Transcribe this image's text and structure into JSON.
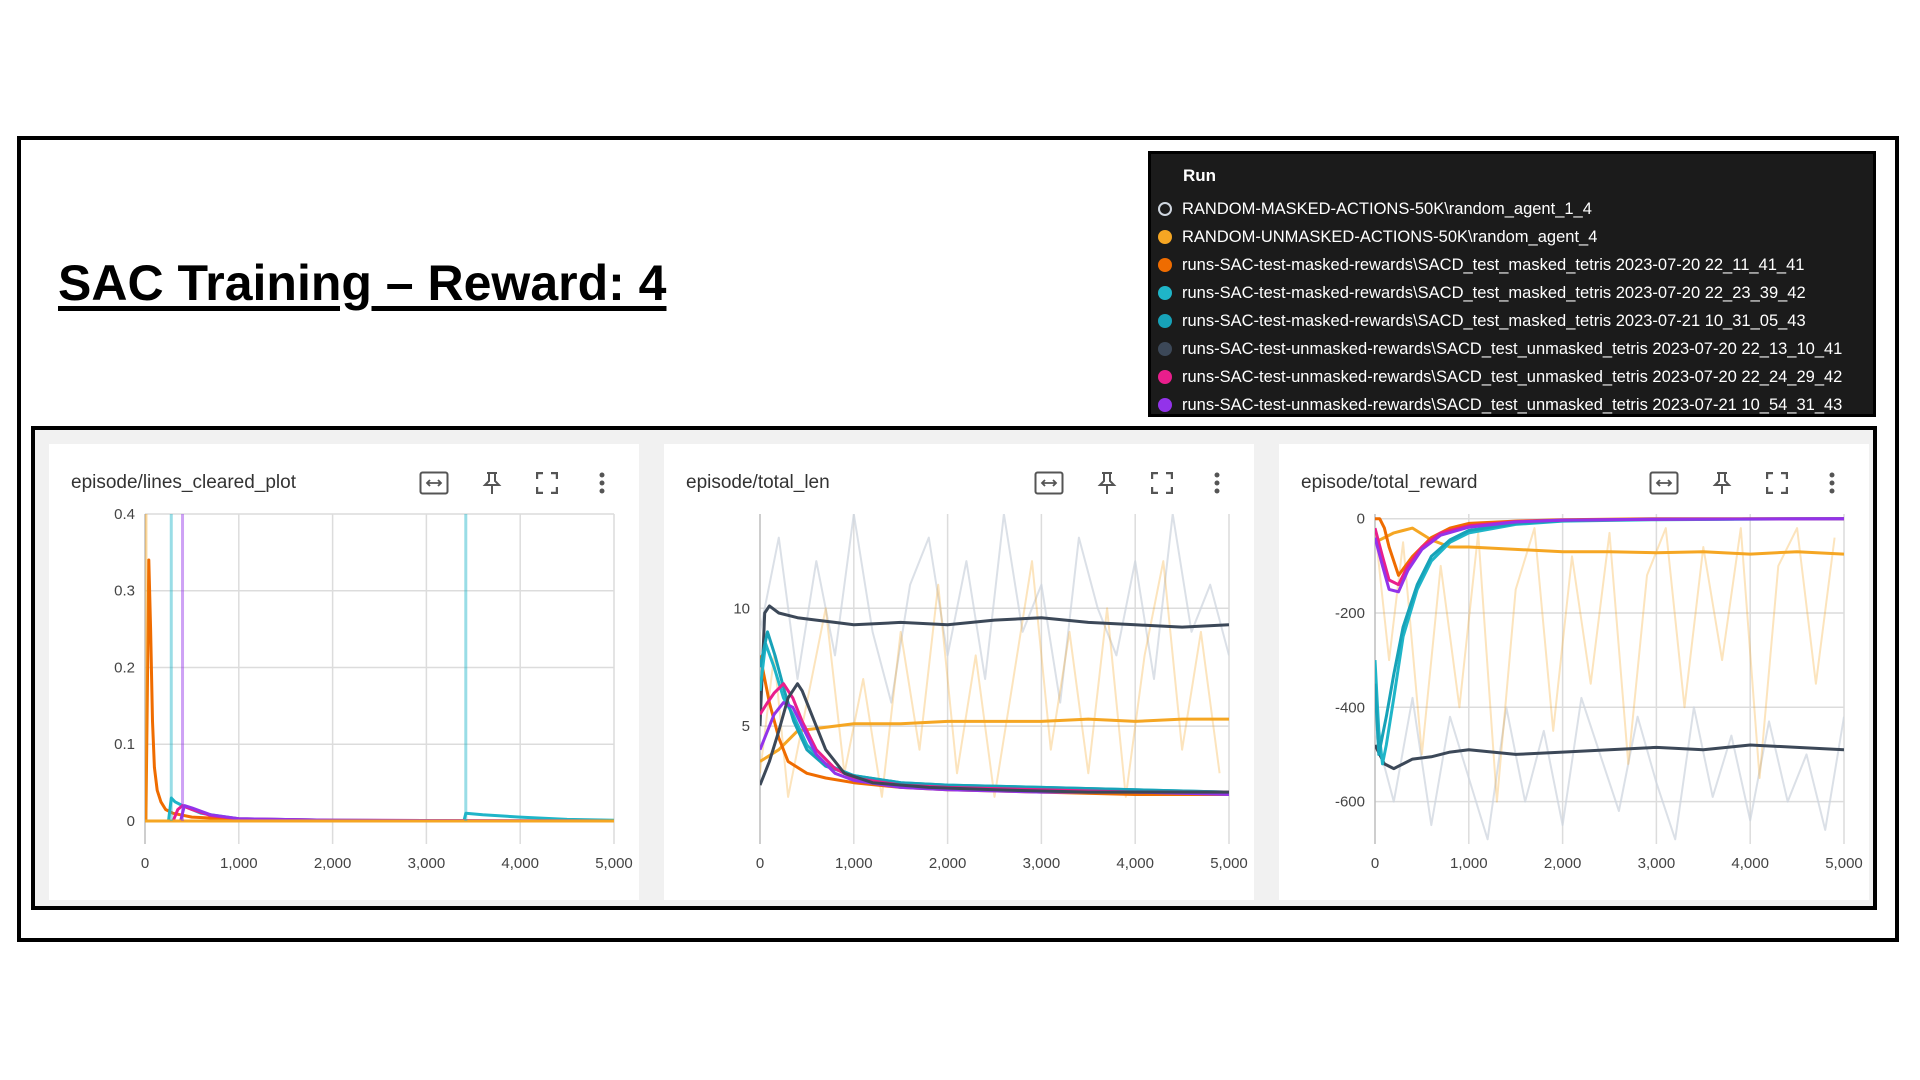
{
  "slide": {
    "title": "SAC Training – Reward: 4"
  },
  "legend": {
    "header": "Run",
    "runs": [
      {
        "name": "RANDOM-MASKED-ACTIONS-50K\\random_agent_1_4",
        "color": "#cfd6df",
        "hollow": true
      },
      {
        "name": "RANDOM-UNMASKED-ACTIONS-50K\\random_agent_4",
        "color": "#f5a623"
      },
      {
        "name": "runs-SAC-test-masked-rewards\\SACD_test_masked_tetris 2023-07-20 22_11_41_41",
        "color": "#ef6c00"
      },
      {
        "name": "runs-SAC-test-masked-rewards\\SACD_test_masked_tetris 2023-07-20 22_23_39_42",
        "color": "#1fb5c8"
      },
      {
        "name": "runs-SAC-test-masked-rewards\\SACD_test_masked_tetris 2023-07-21 10_31_05_43",
        "color": "#17a2b8"
      },
      {
        "name": "runs-SAC-test-unmasked-rewards\\SACD_test_unmasked_tetris 2023-07-20 22_13_10_41",
        "color": "#3c4858"
      },
      {
        "name": "runs-SAC-test-unmasked-rewards\\SACD_test_unmasked_tetris 2023-07-20 22_24_29_42",
        "color": "#e91e8c"
      },
      {
        "name": "runs-SAC-test-unmasked-rewards\\SACD_test_unmasked_tetris 2023-07-21 10_54_31_43",
        "color": "#9333ea"
      }
    ]
  },
  "icons": [
    "fit-domain-icon",
    "pin-icon",
    "fullscreen-icon",
    "more-vert-icon"
  ],
  "chart_data": [
    {
      "type": "line",
      "title": "episode/lines_cleared_plot",
      "xlim": [
        0,
        5000
      ],
      "ylim": [
        -0.03,
        0.4
      ],
      "xticks": [
        0,
        1000,
        2000,
        3000,
        4000,
        5000
      ],
      "xtick_labels": [
        "0",
        "1,000",
        "2,000",
        "3,000",
        "4,000",
        "5,000"
      ],
      "yticks": [
        0,
        0.1,
        0.2,
        0.3,
        0.4
      ],
      "ytick_labels": [
        "0",
        "0.1",
        "0.2",
        "0.3",
        "0.4"
      ],
      "grid": true,
      "series": [
        {
          "run": 2,
          "x": [
            10,
            40,
            60,
            80,
            100,
            130,
            170,
            220,
            300,
            500,
            1000,
            2000,
            5000
          ],
          "y": [
            0,
            0.34,
            0.25,
            0.13,
            0.07,
            0.04,
            0.025,
            0.015,
            0.01,
            0.005,
            0.002,
            0,
            0
          ]
        },
        {
          "run": 3,
          "x": [
            250,
            280,
            320,
            400,
            600,
            1000,
            2000,
            3400,
            3420,
            3600,
            4000,
            4500,
            5000
          ],
          "y": [
            0,
            0.03,
            0.025,
            0.02,
            0.01,
            0.003,
            0.001,
            0,
            0.01,
            0.008,
            0.005,
            0.002,
            0.001
          ]
        },
        {
          "run": 6,
          "x": [
            300,
            350,
            400,
            500,
            700,
            1000,
            2000,
            5000
          ],
          "y": [
            0,
            0.015,
            0.02,
            0.015,
            0.007,
            0.003,
            0.001,
            0
          ]
        },
        {
          "run": 7,
          "x": [
            380,
            420,
            500,
            700,
            1000,
            2000,
            5000
          ],
          "y": [
            0,
            0.02,
            0.017,
            0.008,
            0.003,
            0.001,
            0
          ]
        },
        {
          "run": 1,
          "x": [
            0,
            5000
          ],
          "y": [
            0,
            0
          ]
        }
      ],
      "spikes": [
        {
          "run": 1,
          "x": 10,
          "y": 0.4
        },
        {
          "run": 3,
          "x": 280,
          "y": 0.4
        },
        {
          "run": 7,
          "x": 400,
          "y": 0.4
        },
        {
          "run": 3,
          "x": 3420,
          "y": 0.4
        }
      ]
    },
    {
      "type": "line",
      "title": "episode/total_len",
      "xlim": [
        0,
        5000
      ],
      "ylim": [
        0,
        14
      ],
      "xticks": [
        0,
        1000,
        2000,
        3000,
        4000,
        5000
      ],
      "xtick_labels": [
        "0",
        "1,000",
        "2,000",
        "3,000",
        "4,000",
        "5,000"
      ],
      "yticks": [
        5,
        10
      ],
      "ytick_labels": [
        "5",
        "10"
      ],
      "grid": true,
      "series": [
        {
          "run": 0,
          "faint": true,
          "x": [
            0,
            200,
            400,
            600,
            800,
            1000,
            1200,
            1400,
            1600,
            1800,
            2000,
            2200,
            2400,
            2600,
            2800,
            3000,
            3200,
            3400,
            3600,
            3800,
            4000,
            4200,
            4400,
            4600,
            4800,
            5000
          ],
          "y": [
            9,
            13,
            7,
            12,
            8,
            14,
            9,
            6,
            11,
            13,
            8,
            12,
            7,
            14,
            9,
            11,
            6,
            13,
            10,
            8,
            12,
            7,
            14,
            9,
            11,
            8
          ]
        },
        {
          "run": 1,
          "faint": true,
          "x": [
            0,
            150,
            300,
            500,
            700,
            900,
            1100,
            1300,
            1500,
            1700,
            1900,
            2100,
            2300,
            2500,
            2700,
            2900,
            3100,
            3300,
            3500,
            3700,
            3900,
            4100,
            4300,
            4500,
            4700,
            4900
          ],
          "y": [
            3,
            8,
            2,
            6,
            10,
            3,
            7,
            2,
            9,
            4,
            11,
            3,
            8,
            2,
            7,
            12,
            4,
            9,
            3,
            10,
            2,
            8,
            12,
            4,
            9,
            3
          ]
        },
        {
          "run": 5,
          "x": [
            0,
            50,
            100,
            200,
            400,
            600,
            800,
            1000,
            1500,
            2000,
            2500,
            3000,
            3500,
            4000,
            4500,
            5000
          ],
          "y": [
            5,
            9.8,
            10.1,
            9.8,
            9.6,
            9.5,
            9.4,
            9.3,
            9.4,
            9.3,
            9.5,
            9.6,
            9.4,
            9.3,
            9.2,
            9.3
          ]
        },
        {
          "run": 1,
          "x": [
            0,
            200,
            400,
            600,
            800,
            1000,
            1500,
            2000,
            2500,
            3000,
            3500,
            4000,
            4500,
            5000
          ],
          "y": [
            3.5,
            4.0,
            4.8,
            4.9,
            5.0,
            5.1,
            5.1,
            5.2,
            5.2,
            5.2,
            5.3,
            5.2,
            5.3,
            5.3
          ]
        },
        {
          "run": 2,
          "x": [
            0,
            50,
            100,
            200,
            300,
            500,
            700,
            1000,
            1500,
            2000,
            3000,
            4000,
            5000
          ],
          "y": [
            8,
            7,
            6,
            4.5,
            3.5,
            3.0,
            2.8,
            2.6,
            2.4,
            2.3,
            2.2,
            2.1,
            2.1
          ]
        },
        {
          "run": 3,
          "x": [
            0,
            60,
            150,
            250,
            350,
            500,
            700,
            1000,
            1500,
            2000,
            3000,
            4000,
            5000
          ],
          "y": [
            6.5,
            8.5,
            7.5,
            6.2,
            5.5,
            4.2,
            3.4,
            2.9,
            2.6,
            2.5,
            2.4,
            2.3,
            2.2
          ]
        },
        {
          "run": 4,
          "x": [
            0,
            80,
            160,
            260,
            360,
            500,
            700,
            1000,
            1500,
            2000,
            3000,
            4000,
            5000
          ],
          "y": [
            7.5,
            9,
            8,
            6.5,
            5.2,
            4.0,
            3.3,
            2.9,
            2.6,
            2.5,
            2.4,
            2.3,
            2.2
          ]
        },
        {
          "run": 6,
          "x": [
            0,
            80,
            150,
            250,
            350,
            450,
            600,
            800,
            1000,
            1500,
            2000,
            3000,
            4000,
            5000
          ],
          "y": [
            5.5,
            6.0,
            6.4,
            6.8,
            6.2,
            5.2,
            4.0,
            3.2,
            2.8,
            2.5,
            2.4,
            2.3,
            2.2,
            2.2
          ]
        },
        {
          "run": 7,
          "x": [
            0,
            80,
            150,
            250,
            350,
            450,
            600,
            800,
            1000,
            1500,
            2000,
            3000,
            4000,
            5000
          ],
          "y": [
            4,
            4.8,
            5.5,
            6.0,
            5.8,
            5.0,
            3.8,
            3.0,
            2.7,
            2.4,
            2.3,
            2.2,
            2.2,
            2.1
          ]
        },
        {
          "run": 5,
          "x": [
            0,
            100,
            200,
            300,
            400,
            450,
            550,
            700,
            900,
            1200,
            1800,
            2500,
            3500,
            5000
          ],
          "y": [
            2.5,
            3.5,
            4.8,
            6.2,
            6.8,
            6.5,
            5.5,
            4.0,
            3.0,
            2.6,
            2.4,
            2.3,
            2.2,
            2.2
          ]
        }
      ]
    },
    {
      "type": "line",
      "title": "episode/total_reward",
      "xlim": [
        0,
        5000
      ],
      "ylim": [
        -690,
        10
      ],
      "xticks": [
        0,
        1000,
        2000,
        3000,
        4000,
        5000
      ],
      "xtick_labels": [
        "0",
        "1,000",
        "2,000",
        "3,000",
        "4,000",
        "5,000"
      ],
      "yticks": [
        0,
        -200,
        -400,
        -600
      ],
      "ytick_labels": [
        "0",
        "-200",
        "-400",
        "-600"
      ],
      "grid": true,
      "series": [
        {
          "run": 0,
          "faint": true,
          "x": [
            0,
            200,
            400,
            600,
            800,
            1000,
            1200,
            1400,
            1600,
            1800,
            2000,
            2200,
            2400,
            2600,
            2800,
            3000,
            3200,
            3400,
            3600,
            3800,
            4000,
            4200,
            4400,
            4600,
            4800,
            5000
          ],
          "y": [
            -450,
            -600,
            -380,
            -650,
            -420,
            -550,
            -680,
            -400,
            -600,
            -450,
            -650,
            -380,
            -500,
            -620,
            -420,
            -560,
            -680,
            -400,
            -590,
            -460,
            -640,
            -430,
            -600,
            -500,
            -660,
            -420
          ]
        },
        {
          "run": 1,
          "faint": true,
          "x": [
            0,
            150,
            300,
            500,
            700,
            900,
            1100,
            1300,
            1500,
            1700,
            1900,
            2100,
            2300,
            2500,
            2700,
            2900,
            3100,
            3300,
            3500,
            3700,
            3900,
            4100,
            4300,
            4500,
            4700,
            4900
          ],
          "y": [
            -20,
            -300,
            -50,
            -500,
            -100,
            -400,
            -30,
            -600,
            -150,
            -20,
            -450,
            -80,
            -350,
            -30,
            -520,
            -120,
            -20,
            -400,
            -60,
            -300,
            -20,
            -550,
            -100,
            -20,
            -350,
            -40
          ]
        },
        {
          "run": 5,
          "x": [
            0,
            100,
            200,
            300,
            400,
            600,
            800,
            1000,
            1500,
            2000,
            2500,
            3000,
            3500,
            4000,
            4500,
            5000
          ],
          "y": [
            -480,
            -520,
            -530,
            -520,
            -510,
            -505,
            -495,
            -490,
            -500,
            -495,
            -490,
            -485,
            -490,
            -480,
            -485,
            -490
          ]
        },
        {
          "run": 1,
          "x": [
            0,
            100,
            200,
            300,
            400,
            600,
            800,
            1000,
            1500,
            2000,
            2500,
            3000,
            3500,
            4000,
            4500,
            5000
          ],
          "y": [
            -50,
            -40,
            -30,
            -25,
            -20,
            -45,
            -60,
            -60,
            -65,
            -70,
            -70,
            -72,
            -70,
            -75,
            -70,
            -75
          ]
        },
        {
          "run": 2,
          "x": [
            0,
            50,
            100,
            150,
            250,
            400,
            600,
            800,
            1000,
            1500,
            2000,
            3000,
            5000
          ],
          "y": [
            0,
            0,
            -20,
            -60,
            -120,
            -80,
            -40,
            -20,
            -10,
            -5,
            -2,
            0,
            0
          ]
        },
        {
          "run": 3,
          "x": [
            0,
            40,
            80,
            120,
            200,
            300,
            450,
            600,
            800,
            1000,
            1500,
            2000,
            3000,
            5000
          ],
          "y": [
            -300,
            -450,
            -520,
            -480,
            -380,
            -250,
            -150,
            -90,
            -50,
            -30,
            -12,
            -5,
            -2,
            0
          ]
        },
        {
          "run": 4,
          "x": [
            0,
            40,
            80,
            120,
            200,
            300,
            450,
            600,
            800,
            1000,
            1500,
            2000,
            3000,
            5000
          ],
          "y": [
            -350,
            -500,
            -460,
            -420,
            -330,
            -230,
            -140,
            -80,
            -45,
            -25,
            -10,
            -4,
            -1,
            0
          ]
        },
        {
          "run": 6,
          "x": [
            0,
            80,
            150,
            250,
            350,
            500,
            700,
            1000,
            1500,
            2000,
            3000,
            5000
          ],
          "y": [
            -20,
            -80,
            -130,
            -140,
            -100,
            -60,
            -30,
            -15,
            -6,
            -3,
            -1,
            0
          ]
        },
        {
          "run": 7,
          "x": [
            0,
            80,
            150,
            250,
            350,
            500,
            700,
            1000,
            1500,
            2000,
            3000,
            5000
          ],
          "y": [
            -40,
            -100,
            -150,
            -155,
            -110,
            -65,
            -35,
            -18,
            -7,
            -3,
            -1,
            0
          ]
        }
      ]
    }
  ]
}
